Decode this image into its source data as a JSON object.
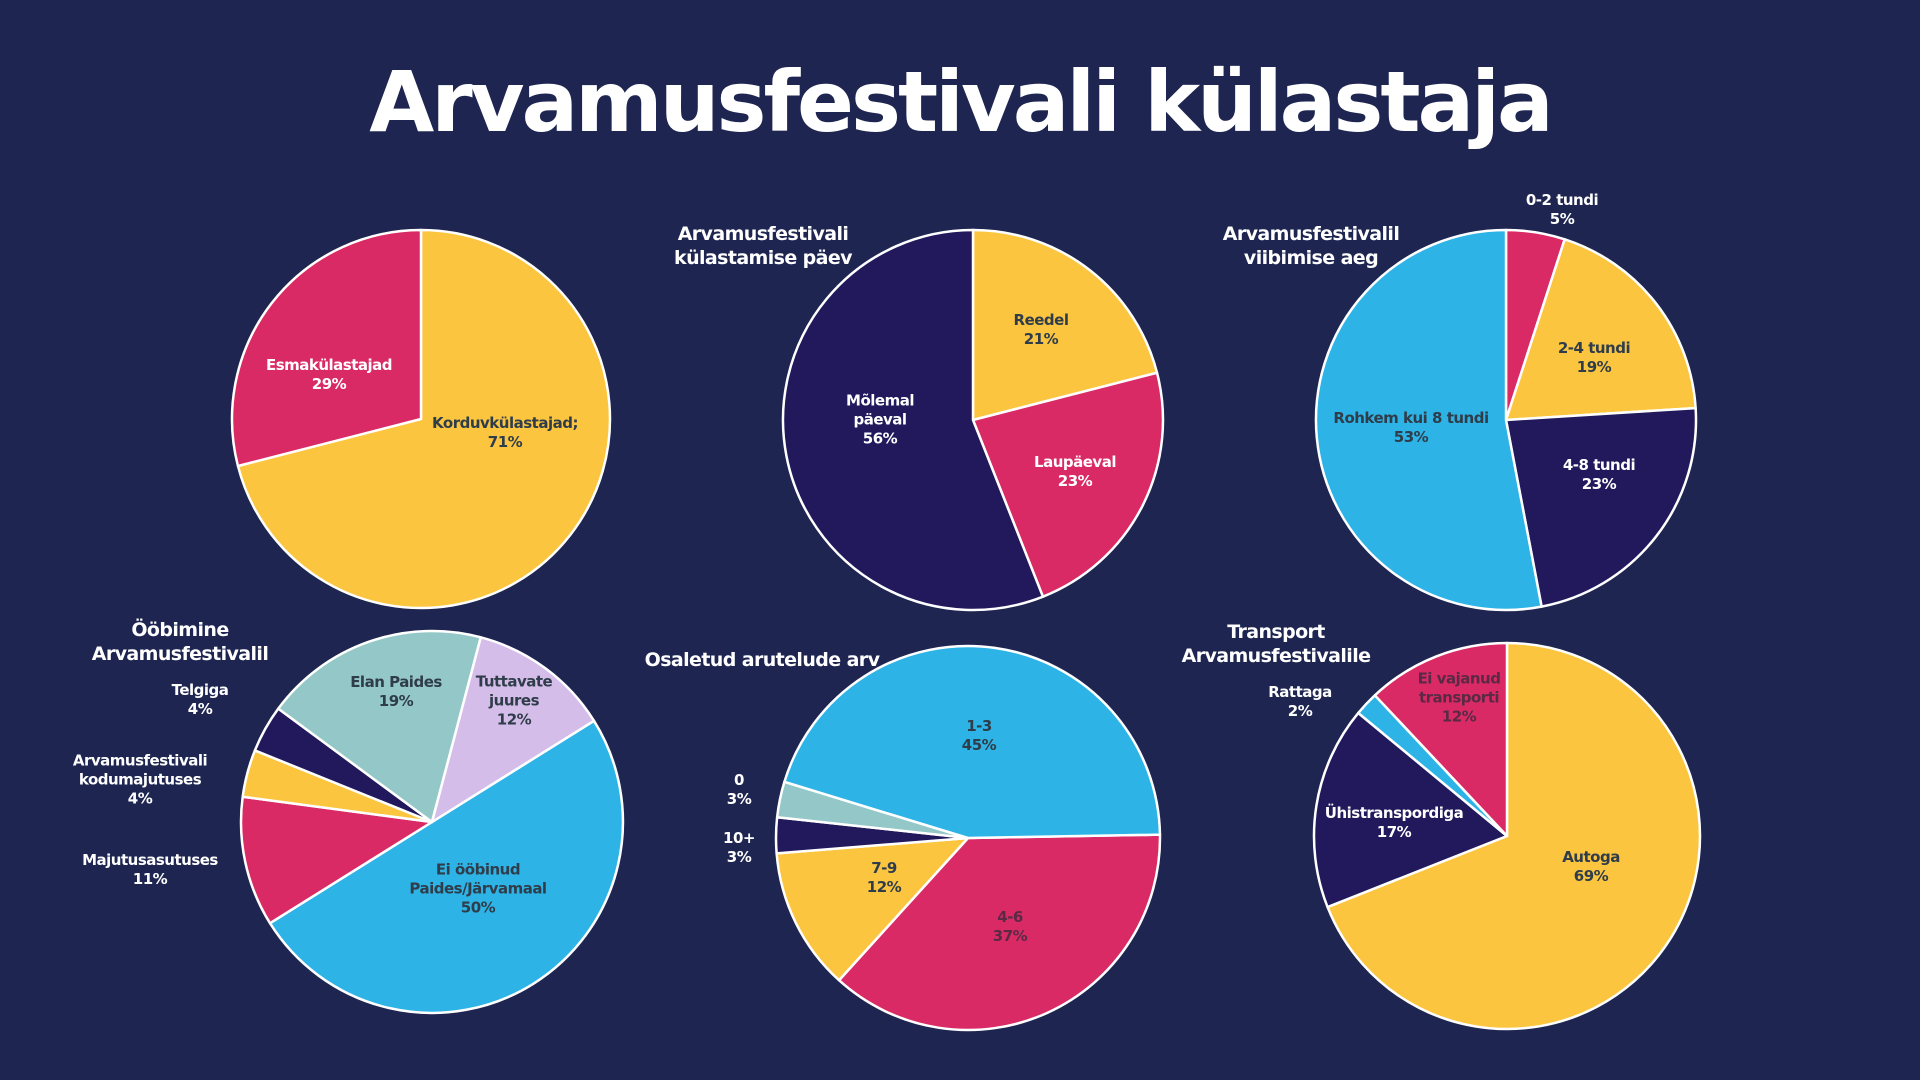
{
  "header": {
    "title": "Arvamusfestivali külastaja"
  },
  "colors": {
    "background": "#1D2550",
    "yellow": "#FCC540",
    "pink": "#D92A66",
    "navy": "#21195C",
    "cyan": "#2EB3E6",
    "mint": "#94C8C8",
    "lavender": "#D5BDE9",
    "slice_border": "#FFFFFF",
    "text_white": "#FFFFFF",
    "text_dark": "#2F3D4A",
    "text_dark_on_pink": "#5A2A44"
  },
  "chart_data": [
    {
      "type": "pie",
      "title": "",
      "slices": [
        {
          "label": [
            "Korduvkülastajad;",
            "71%"
          ],
          "value": 71,
          "color": "yellow",
          "text": "text_dark"
        },
        {
          "label": [
            "Esmakülastajad",
            "29%"
          ],
          "value": 29,
          "color": "pink",
          "text": "text_white"
        }
      ]
    },
    {
      "type": "pie",
      "title": [
        "Arvamusfestivali",
        "külastamise päev"
      ],
      "slices": [
        {
          "label": [
            "Reedel",
            "21%"
          ],
          "value": 21,
          "color": "yellow",
          "text": "text_dark"
        },
        {
          "label": [
            "Laupäeval",
            "23%"
          ],
          "value": 23,
          "color": "pink",
          "text": "text_white"
        },
        {
          "label": [
            "Mõlemal",
            "päeval",
            "56%"
          ],
          "value": 56,
          "color": "navy",
          "text": "text_white"
        }
      ]
    },
    {
      "type": "pie",
      "title": [
        "Arvamusfestivalil",
        "viibimise aeg"
      ],
      "slices": [
        {
          "label": [
            "0-2 tundi",
            "5%"
          ],
          "value": 5,
          "color": "pink",
          "text": "text_white",
          "outside": true
        },
        {
          "label": [
            "2-4 tundi",
            "19%"
          ],
          "value": 19,
          "color": "yellow",
          "text": "text_dark"
        },
        {
          "label": [
            "4-8 tundi",
            "23%"
          ],
          "value": 23,
          "color": "navy",
          "text": "text_white"
        },
        {
          "label": [
            "Rohkem kui 8 tundi",
            "53%"
          ],
          "value": 53,
          "color": "cyan",
          "text": "text_dark"
        }
      ]
    },
    {
      "type": "pie",
      "title": [
        "Ööbimine",
        "Arvamusfestivalil"
      ],
      "start_angle_deg": 58,
      "slices": [
        {
          "label": [
            "Ei ööbinud",
            "Paides/Järvamaal",
            "50%"
          ],
          "value": 50,
          "color": "cyan",
          "text": "text_dark"
        },
        {
          "label": [
            "Majutusasutuses",
            "11%"
          ],
          "value": 11,
          "color": "pink",
          "text": "text_white",
          "outside": true
        },
        {
          "label": [
            "Arvamusfestivali",
            "kodumajutuses",
            "4%"
          ],
          "value": 4,
          "color": "yellow",
          "text": "text_white",
          "outside": true
        },
        {
          "label": [
            "Telgiga",
            "4%"
          ],
          "value": 4,
          "color": "navy",
          "text": "text_white",
          "outside": true
        },
        {
          "label": [
            "Elan Paides",
            "19%"
          ],
          "value": 19,
          "color": "mint",
          "text": "text_dark"
        },
        {
          "label": [
            "Tuttavate",
            "juures",
            "12%"
          ],
          "value": 12,
          "color": "lavender",
          "text": "text_dark"
        }
      ]
    },
    {
      "type": "pie",
      "title": [
        "Osaletud arutelude arv"
      ],
      "start_angle_deg": 89,
      "slices": [
        {
          "label": [
            "4-6",
            "37%"
          ],
          "value": 37,
          "color": "pink",
          "text": "text_dark_on_pink"
        },
        {
          "label": [
            "7-9",
            "12%"
          ],
          "value": 12,
          "color": "yellow",
          "text": "text_dark"
        },
        {
          "label": [
            "10+",
            "3%"
          ],
          "value": 3,
          "color": "navy",
          "text": "text_white",
          "outside": true
        },
        {
          "label": [
            "0",
            "3%"
          ],
          "value": 3,
          "color": "mint",
          "text": "text_white",
          "outside": true
        },
        {
          "label": [
            "1-3",
            "45%"
          ],
          "value": 45,
          "color": "cyan",
          "text": "text_dark"
        }
      ]
    },
    {
      "type": "pie",
      "title": [
        "Transport",
        "Arvamusfestivalile"
      ],
      "slices": [
        {
          "label": [
            "Autoga",
            "69%"
          ],
          "value": 69,
          "color": "yellow",
          "text": "text_dark"
        },
        {
          "label": [
            "Ühistranspordiga",
            "17%"
          ],
          "value": 17,
          "color": "navy",
          "text": "text_white"
        },
        {
          "label": [
            "Rattaga",
            "2%"
          ],
          "value": 2,
          "color": "cyan",
          "text": "text_white",
          "outside": true
        },
        {
          "label": [
            "Ei vajanud",
            "transporti",
            "12%"
          ],
          "value": 12,
          "color": "pink",
          "text": "text_dark_on_pink"
        }
      ]
    }
  ]
}
